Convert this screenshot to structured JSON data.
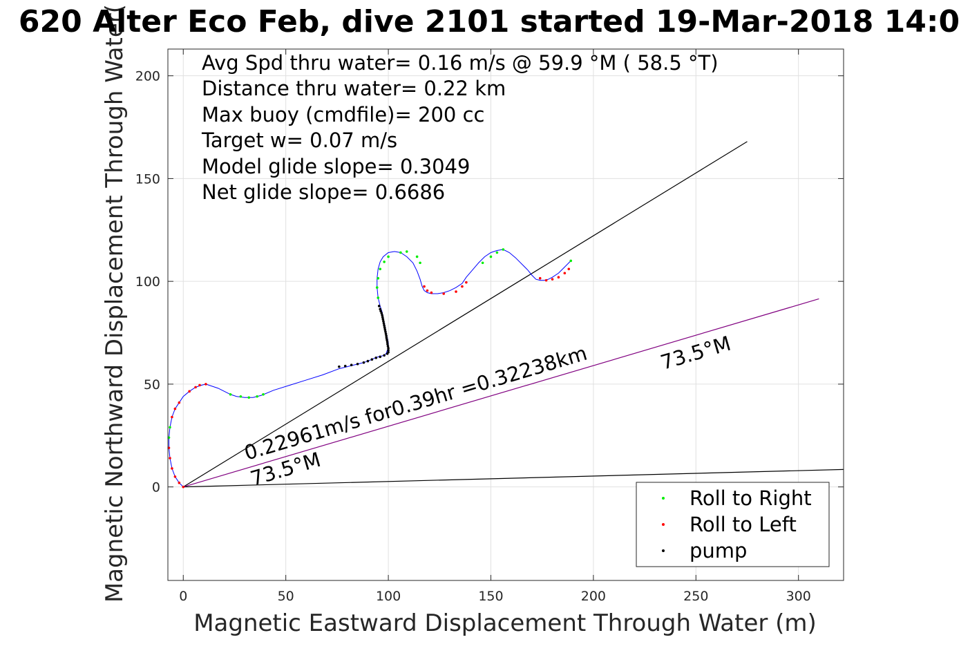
{
  "chart_data": {
    "type": "line",
    "title": "620 Alter Eco Feb, dive 2101 started 19-Mar-2018 14:0",
    "xlabel": "Magnetic Eastward Displacement Through Water (m)",
    "ylabel": "Magnetic Northward Displacement Through Water(",
    "xlim": [
      -7.5,
      322
    ],
    "ylim": [
      -45.5,
      213
    ],
    "xticks": [
      0,
      50,
      100,
      150,
      200,
      250,
      300
    ],
    "yticks": [
      0,
      50,
      100,
      150,
      200
    ],
    "grid": true,
    "stats_lines": [
      "Avg Spd thru water=  0.16 m/s @  59.9 °M ( 58.5 °T)",
      "Distance thru water=  0.22 km",
      "Max buoy (cmdfile)= 200 cc",
      "Target w= 0.07 m/s",
      "Model glide slope= 0.3049",
      "Net glide slope= 0.6686"
    ],
    "track": {
      "x": [
        0,
        -2,
        -4,
        -5.5,
        -6.5,
        -7,
        -7,
        -6.5,
        -5.5,
        -4,
        -2,
        0,
        3,
        6,
        9,
        11,
        14,
        17,
        20,
        23,
        26,
        30,
        34,
        38,
        44,
        52,
        60,
        68,
        76,
        80,
        84,
        88,
        92,
        94,
        96,
        98,
        99,
        99.5,
        100,
        100,
        99.5,
        99,
        98.5,
        98,
        97.5,
        97,
        96,
        95,
        94.5,
        94.5,
        95,
        96,
        97.5,
        100,
        103,
        106,
        109,
        112,
        114,
        115.5,
        116.5,
        117.5,
        119,
        121,
        124,
        127,
        130,
        133,
        136,
        138,
        141,
        144,
        147,
        150,
        153,
        156,
        159,
        162,
        165,
        168,
        170,
        172,
        174,
        176,
        178,
        180,
        183,
        186,
        189
      ],
      "y": [
        0,
        2,
        5,
        9,
        14,
        19,
        24,
        29,
        34,
        38,
        41,
        44,
        46.5,
        48.5,
        49.5,
        50,
        49,
        48,
        46.5,
        45,
        44,
        43.5,
        43.5,
        44.5,
        47,
        49.5,
        52,
        54.5,
        57.5,
        58.5,
        59.5,
        60.5,
        62,
        63,
        63.5,
        64,
        65,
        66.5,
        68,
        70,
        72.5,
        75,
        77.5,
        80,
        82.5,
        85,
        88,
        92,
        97,
        101.5,
        106,
        109.5,
        112,
        114,
        114.5,
        114,
        112,
        109,
        105,
        101,
        97.5,
        95.5,
        94.5,
        94,
        94,
        94.5,
        95.5,
        97,
        99,
        102,
        105.5,
        109,
        112,
        114,
        115,
        115.5,
        114,
        111.5,
        108.5,
        105.5,
        103,
        101,
        100.5,
        100.5,
        101,
        102,
        104,
        107,
        110
      ]
    },
    "reference_lines": [
      {
        "name": "line-upper",
        "x": [
          0,
          275
        ],
        "y": [
          0,
          168
        ],
        "color": "#000000"
      },
      {
        "name": "line-lower",
        "x": [
          0,
          322
        ],
        "y": [
          0,
          8.5
        ],
        "color": "#000000"
      },
      {
        "name": "line-heading",
        "x": [
          0,
          310
        ],
        "y": [
          0,
          91.5
        ],
        "color": "#800080"
      }
    ],
    "annotations": [
      {
        "text": "0.22961m/s for0.39hr =0.32238km",
        "x": 31,
        "y": 13,
        "angle": 16.5
      },
      {
        "text": "73.5°M",
        "x": 34,
        "y": 0.5,
        "angle": 16.5
      },
      {
        "text": "73.5°M",
        "x": 234,
        "y": 57,
        "angle": 16.5
      }
    ],
    "markers": {
      "roll_right": {
        "label": "Roll to Right",
        "color": "#00ee00",
        "points": [
          [
            -7,
            24
          ],
          [
            -6.5,
            29
          ],
          [
            23,
            45
          ],
          [
            28,
            44
          ],
          [
            32,
            43.5
          ],
          [
            36,
            44
          ],
          [
            39,
            45
          ],
          [
            95,
            92
          ],
          [
            94.5,
            97
          ],
          [
            95,
            101.5
          ],
          [
            96,
            106
          ],
          [
            98,
            109.5
          ],
          [
            100,
            112
          ],
          [
            106,
            114
          ],
          [
            109,
            114.5
          ],
          [
            114,
            112
          ],
          [
            115.5,
            109
          ],
          [
            146,
            109
          ],
          [
            150,
            112
          ],
          [
            153,
            114
          ],
          [
            156,
            115.5
          ],
          [
            189,
            110
          ]
        ]
      },
      "roll_left": {
        "label": "Roll to Left",
        "color": "#ff0000",
        "points": [
          [
            0,
            0
          ],
          [
            -2,
            2
          ],
          [
            -4,
            5
          ],
          [
            -5.5,
            9
          ],
          [
            -6.5,
            14
          ],
          [
            -7,
            19
          ],
          [
            -5.5,
            34
          ],
          [
            -4,
            38
          ],
          [
            -2,
            41
          ],
          [
            3,
            46.5
          ],
          [
            6,
            48.5
          ],
          [
            8,
            49.5
          ],
          [
            11,
            50
          ],
          [
            117.5,
            97.5
          ],
          [
            119,
            95.5
          ],
          [
            121,
            94.5
          ],
          [
            127,
            94
          ],
          [
            133,
            95
          ],
          [
            136,
            97.5
          ],
          [
            138,
            99.5
          ],
          [
            174,
            101.5
          ],
          [
            177,
            100.5
          ],
          [
            180,
            101
          ],
          [
            183,
            102
          ],
          [
            186,
            104
          ],
          [
            188,
            106
          ]
        ]
      },
      "pump": {
        "label": "pump",
        "color": "#000000",
        "points": [
          [
            76,
            58.5
          ],
          [
            79,
            58.8
          ],
          [
            82,
            59.3
          ],
          [
            85,
            59.8
          ],
          [
            88,
            60.5
          ],
          [
            90,
            61.2
          ],
          [
            92,
            62
          ],
          [
            94,
            62.8
          ],
          [
            96,
            63.3
          ],
          [
            98,
            64
          ],
          [
            99.5,
            64.8
          ],
          [
            100,
            65.5
          ],
          [
            100,
            66.5
          ],
          [
            100,
            67.5
          ],
          [
            99.8,
            68.5
          ],
          [
            99.6,
            69.5
          ],
          [
            99.5,
            70.5
          ],
          [
            99.3,
            71.5
          ],
          [
            99.1,
            72.5
          ],
          [
            99,
            73.5
          ],
          [
            98.8,
            74.5
          ],
          [
            98.6,
            75.5
          ],
          [
            98.4,
            76.5
          ],
          [
            98.2,
            77.5
          ],
          [
            98,
            78.5
          ],
          [
            97.8,
            79.5
          ],
          [
            97.6,
            80.5
          ],
          [
            97.4,
            81.5
          ],
          [
            97.2,
            82.5
          ],
          [
            97,
            83.5
          ],
          [
            96.7,
            84.5
          ],
          [
            96.3,
            85.5
          ],
          [
            96,
            86.5
          ],
          [
            95.5,
            88
          ]
        ]
      }
    },
    "legend_location": "bottom-right"
  }
}
